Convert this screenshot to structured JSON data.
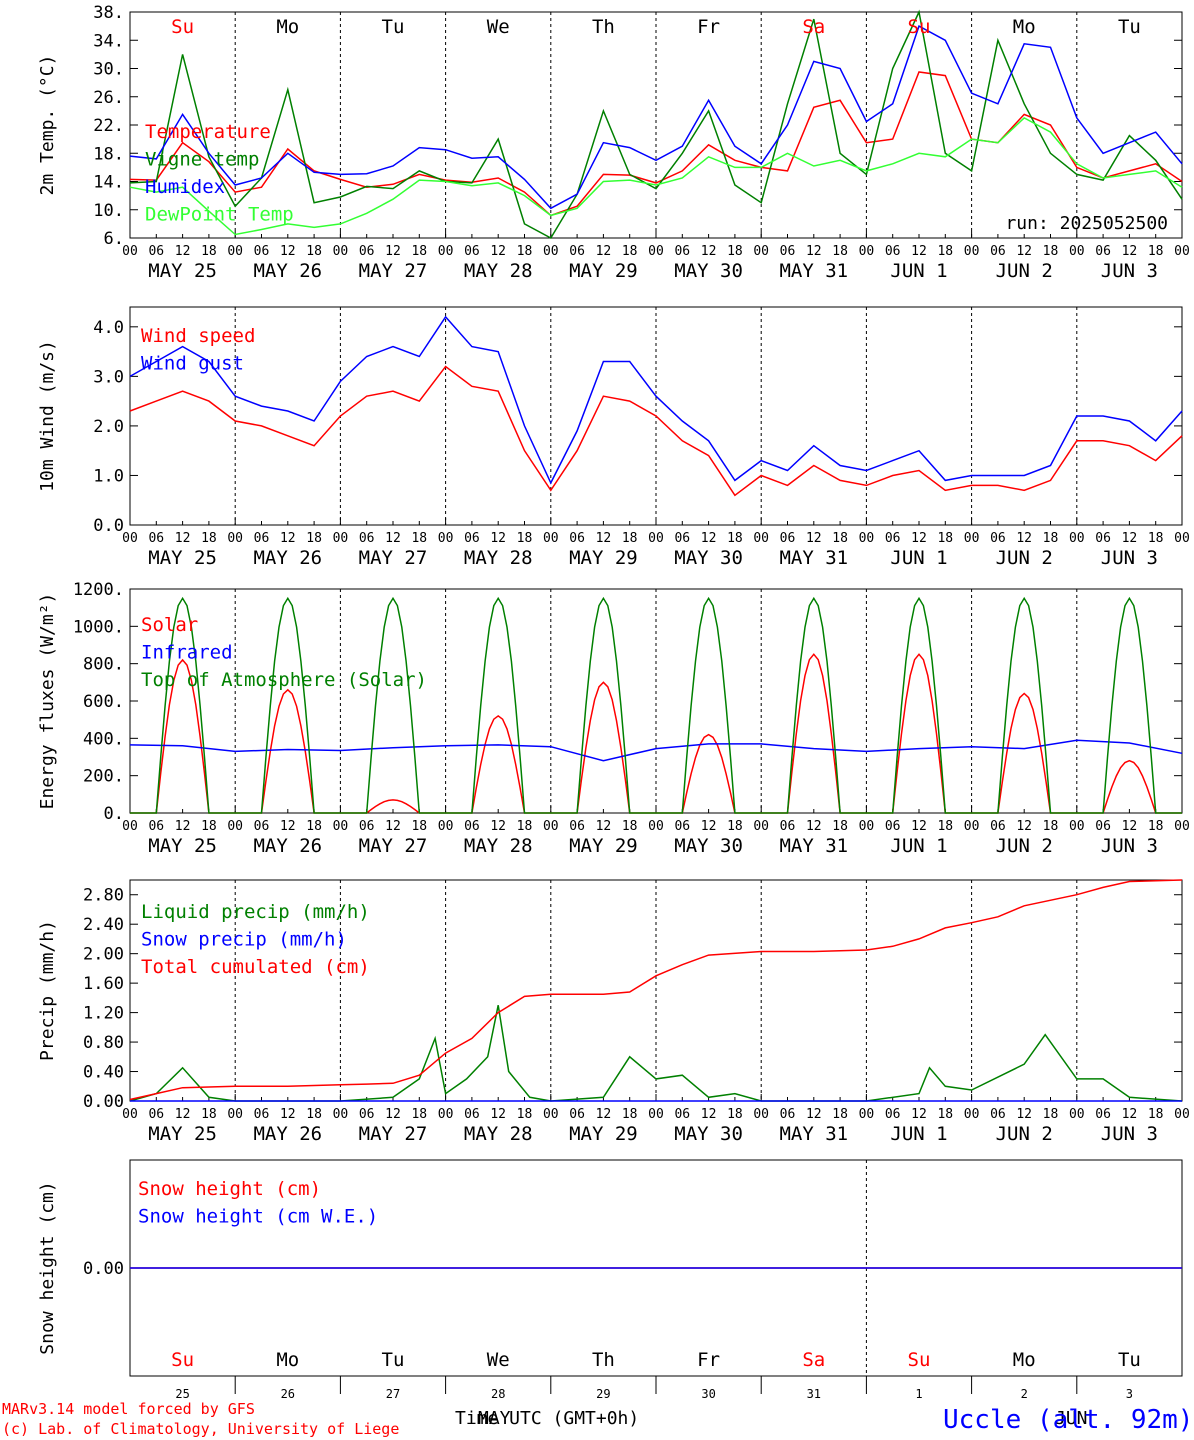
{
  "colors": {
    "red": "#ff0000",
    "green": "#008000",
    "blue": "#0000ff",
    "lightgreen": "#33ff33",
    "black": "#000000"
  },
  "days": {
    "weekday": [
      "Su",
      "Mo",
      "Tu",
      "We",
      "Th",
      "Fr",
      "Sa",
      "Su",
      "Mo",
      "Tu"
    ],
    "weekday_red": [
      true,
      false,
      false,
      false,
      false,
      false,
      true,
      true,
      false,
      false
    ],
    "date_labels": [
      "MAY 25",
      "MAY 26",
      "MAY 27",
      "MAY 28",
      "MAY 29",
      "MAY 30",
      "MAY 31",
      "JUN  1",
      "JUN  2",
      "JUN  3"
    ],
    "day_numbers": [
      "25",
      "26",
      "27",
      "28",
      "29",
      "30",
      "31",
      "1",
      "2",
      "3"
    ],
    "hour_ticks": [
      "00",
      "06",
      "12",
      "18"
    ],
    "end_tick": "00"
  },
  "footer": {
    "model": "MARv3.14 model forced by GFS",
    "lab": "(c) Lab. of Climatology, University of Liege",
    "time_label": "Time UTC (GMT+0h)",
    "month_may": "MAY",
    "month_jun": "JUN",
    "station": "Uccle (alt. 92m)"
  },
  "chart_data": [
    {
      "type": "line",
      "ylabel": "2m Temp. (°C)",
      "ylim": [
        6,
        38
      ],
      "yticks": [
        "38.",
        "34.",
        "30.",
        "26.",
        "22.",
        "18.",
        "14.",
        "10.",
        "6."
      ],
      "run_label": "run: 2025052500",
      "series": [
        {
          "name": "Temperature",
          "color": "red",
          "x": [
            0,
            0.25,
            0.5,
            0.75,
            1,
            1.25,
            1.5,
            1.75,
            2,
            2.25,
            2.5,
            2.75,
            3,
            3.25,
            3.5,
            3.75,
            4,
            4.25,
            4.5,
            4.75,
            5,
            5.25,
            5.5,
            5.75,
            6,
            6.25,
            6.5,
            6.75,
            7,
            7.25,
            7.5,
            7.75,
            8,
            8.25,
            8.5,
            8.75,
            9,
            9.25,
            9.5,
            9.75,
            10
          ],
          "y": [
            14.3,
            14.2,
            19.5,
            16.8,
            12.5,
            13.2,
            18.6,
            15.5,
            14.3,
            13.2,
            13.6,
            15,
            14.2,
            13.9,
            14.5,
            12.5,
            9.2,
            10.5,
            15,
            14.9,
            13.8,
            15.5,
            19.2,
            17,
            16,
            15.5,
            24.5,
            25.5,
            19.5,
            20,
            29.5,
            29,
            20,
            19.5,
            23.5,
            22,
            16,
            14.5,
            15.5,
            16.5,
            14
          ]
        },
        {
          "name": "Vigne temp",
          "color": "green",
          "x": [
            0,
            0.25,
            0.5,
            0.75,
            1,
            1.25,
            1.5,
            1.75,
            2,
            2.25,
            2.5,
            2.75,
            3,
            3.25,
            3.5,
            3.75,
            4,
            4.25,
            4.5,
            4.75,
            5,
            5.25,
            5.5,
            5.75,
            6,
            6.25,
            6.5,
            6.75,
            7,
            7.25,
            7.5,
            7.75,
            8,
            8.25,
            8.5,
            8.75,
            9,
            9.25,
            9.5,
            9.75,
            10
          ],
          "y": [
            13.8,
            14,
            32,
            17.5,
            10.5,
            14.5,
            27,
            11,
            11.8,
            13.3,
            13,
            15.5,
            14,
            13.8,
            20,
            8,
            5.5,
            12.2,
            24,
            15,
            13,
            18,
            24,
            13.5,
            11,
            25,
            37,
            18,
            15,
            30,
            38,
            18,
            15.5,
            34,
            25,
            18,
            15,
            14.2,
            20.5,
            17,
            11.5
          ]
        },
        {
          "name": "Humidex",
          "color": "blue",
          "x": [
            0,
            0.25,
            0.5,
            0.75,
            1,
            1.25,
            1.5,
            1.75,
            2,
            2.25,
            2.5,
            2.75,
            3,
            3.25,
            3.5,
            3.75,
            4,
            4.25,
            4.5,
            4.75,
            5,
            5.25,
            5.5,
            5.75,
            6,
            6.25,
            6.5,
            6.75,
            7,
            7.25,
            7.5,
            7.75,
            8,
            8.25,
            8.5,
            8.75,
            9,
            9.25,
            9.5,
            9.75,
            10
          ],
          "y": [
            17.6,
            17.2,
            23.5,
            18,
            13.5,
            14.5,
            18,
            15.3,
            15,
            15.1,
            16.2,
            18.8,
            18.5,
            17.3,
            17.5,
            14.3,
            10.2,
            12.2,
            19.5,
            18.8,
            17,
            19,
            25.5,
            19,
            16.5,
            22,
            31,
            30,
            22.5,
            25,
            36,
            34,
            26.5,
            25,
            33.5,
            33,
            23,
            18,
            19.5,
            21,
            16.5
          ]
        },
        {
          "name": "DewPoint Temp",
          "color": "lightgreen",
          "x": [
            0,
            0.25,
            0.5,
            0.75,
            1,
            1.25,
            1.5,
            1.75,
            2,
            2.25,
            2.5,
            2.75,
            3,
            3.25,
            3.5,
            3.75,
            4,
            4.25,
            4.5,
            4.75,
            5,
            5.25,
            5.5,
            5.75,
            6,
            6.25,
            6.5,
            6.75,
            7,
            7.25,
            7.5,
            7.75,
            8,
            8.25,
            8.5,
            8.75,
            9,
            9.25,
            9.5,
            9.75,
            10
          ],
          "y": [
            13.2,
            12.5,
            13.2,
            9.8,
            6.5,
            7.2,
            8,
            7.5,
            8,
            9.5,
            11.5,
            14.2,
            14,
            13.4,
            13.8,
            12,
            9.2,
            10.2,
            14,
            14.2,
            13.5,
            14.5,
            17.5,
            16,
            16,
            18,
            16.2,
            17,
            15.5,
            16.5,
            18,
            17.5,
            20,
            19.5,
            23,
            21,
            16.5,
            14.5,
            15,
            15.5,
            13.2
          ]
        }
      ]
    },
    {
      "type": "line",
      "ylabel": "10m Wind (m/s)",
      "ylim": [
        0,
        4.4
      ],
      "yticks": [
        "4.0",
        "3.0",
        "2.0",
        "1.0",
        "0.0"
      ],
      "series": [
        {
          "name": "Wind speed",
          "color": "red",
          "x": [
            0,
            0.25,
            0.5,
            0.75,
            1,
            1.25,
            1.5,
            1.75,
            2,
            2.25,
            2.5,
            2.75,
            3,
            3.25,
            3.5,
            3.75,
            4,
            4.25,
            4.5,
            4.75,
            5,
            5.25,
            5.5,
            5.75,
            6,
            6.25,
            6.5,
            6.75,
            7,
            7.25,
            7.5,
            7.75,
            8,
            8.25,
            8.5,
            8.75,
            9,
            9.25,
            9.5,
            9.75,
            10
          ],
          "y": [
            2.3,
            2.5,
            2.7,
            2.5,
            2.1,
            2,
            1.8,
            1.6,
            2.2,
            2.6,
            2.7,
            2.5,
            3.2,
            2.8,
            2.7,
            1.5,
            0.7,
            1.5,
            2.6,
            2.5,
            2.2,
            1.7,
            1.4,
            0.6,
            1,
            0.8,
            1.2,
            0.9,
            0.8,
            1,
            1.1,
            0.7,
            0.8,
            0.8,
            0.7,
            0.9,
            1.7,
            1.7,
            1.6,
            1.3,
            1.8
          ]
        },
        {
          "name": "Wind gust",
          "color": "blue",
          "x": [
            0,
            0.25,
            0.5,
            0.75,
            1,
            1.25,
            1.5,
            1.75,
            2,
            2.25,
            2.5,
            2.75,
            3,
            3.25,
            3.5,
            3.75,
            4,
            4.25,
            4.5,
            4.75,
            5,
            5.25,
            5.5,
            5.75,
            6,
            6.25,
            6.5,
            6.75,
            7,
            7.25,
            7.5,
            7.75,
            8,
            8.25,
            8.5,
            8.75,
            9,
            9.25,
            9.5,
            9.75,
            10
          ],
          "y": [
            3,
            3.3,
            3.6,
            3.3,
            2.6,
            2.4,
            2.3,
            2.1,
            2.9,
            3.4,
            3.6,
            3.4,
            4.2,
            3.6,
            3.5,
            2,
            0.85,
            1.9,
            3.3,
            3.3,
            2.6,
            2.1,
            1.7,
            0.9,
            1.3,
            1.1,
            1.6,
            1.2,
            1.1,
            1.3,
            1.5,
            0.9,
            1,
            1,
            1,
            1.2,
            2.2,
            2.2,
            2.1,
            1.7,
            2.3
          ]
        }
      ]
    },
    {
      "type": "line",
      "ylabel": "Energy fluxes (W/m²)",
      "ylim": [
        0,
        1200
      ],
      "yticks": [
        "1200.",
        "1000.",
        "800.",
        "600.",
        "400.",
        "200.",
        "0."
      ],
      "series": [
        {
          "name": "Solar",
          "color": "red",
          "daily_peak": [
            820,
            660,
            70,
            520,
            700,
            420,
            850,
            850,
            640,
            280
          ]
        },
        {
          "name": "Infrared",
          "color": "blue",
          "x": [
            0,
            0.5,
            1,
            1.5,
            2,
            2.5,
            3,
            3.5,
            4,
            4.5,
            5,
            5.5,
            6,
            6.5,
            7,
            7.5,
            8,
            8.5,
            9,
            9.5,
            10
          ],
          "y": [
            365,
            360,
            330,
            340,
            335,
            350,
            360,
            365,
            355,
            280,
            345,
            370,
            370,
            345,
            330,
            345,
            355,
            345,
            390,
            375,
            320
          ]
        },
        {
          "name": "Top of Atmosphere (Solar)",
          "color": "green",
          "daily_peak": [
            1150,
            1150,
            1150,
            1150,
            1150,
            1150,
            1150,
            1150,
            1150,
            1150
          ]
        }
      ]
    },
    {
      "type": "line",
      "ylabel": "Precip (mm/h)",
      "ylim": [
        0,
        3.0
      ],
      "yticks": [
        "2.80",
        "2.40",
        "2.00",
        "1.60",
        "1.20",
        "0.80",
        "0.40",
        "0.00"
      ],
      "series": [
        {
          "name": "Liquid precip (mm/h)",
          "color": "green",
          "x": [
            0,
            0.25,
            0.5,
            0.75,
            1,
            1.5,
            2,
            2.5,
            2.75,
            2.9,
            3,
            3.2,
            3.4,
            3.5,
            3.6,
            3.8,
            4,
            4.5,
            4.75,
            5,
            5.25,
            5.5,
            5.75,
            6,
            6.5,
            7,
            7.5,
            7.6,
            7.75,
            8,
            8.5,
            8.7,
            9,
            9.25,
            9.5,
            10
          ],
          "y": [
            0,
            0.1,
            0.45,
            0.05,
            0,
            0,
            0,
            0.05,
            0.3,
            0.85,
            0.1,
            0.3,
            0.6,
            1.3,
            0.4,
            0.05,
            0,
            0.05,
            0.6,
            0.3,
            0.35,
            0.05,
            0.1,
            0,
            0,
            0,
            0.1,
            0.45,
            0.2,
            0.15,
            0.5,
            0.9,
            0.3,
            0.3,
            0.05,
            0
          ]
        },
        {
          "name": "Snow precip (mm/h)",
          "color": "blue",
          "x": [
            0,
            10
          ],
          "y": [
            0,
            0
          ]
        },
        {
          "name": "Total cumulated (cm)",
          "color": "red",
          "x": [
            0,
            0.25,
            0.5,
            1,
            1.5,
            2,
            2.25,
            2.5,
            2.75,
            3,
            3.25,
            3.5,
            3.75,
            4,
            4.5,
            4.75,
            5,
            5.25,
            5.5,
            6,
            6.5,
            7,
            7.25,
            7.5,
            7.75,
            8,
            8.25,
            8.5,
            9,
            9.25,
            9.5,
            10
          ],
          "y": [
            0.02,
            0.1,
            0.18,
            0.2,
            0.2,
            0.22,
            0.23,
            0.24,
            0.35,
            0.65,
            0.85,
            1.2,
            1.42,
            1.45,
            1.45,
            1.48,
            1.7,
            1.85,
            1.98,
            2.03,
            2.03,
            2.05,
            2.1,
            2.2,
            2.35,
            2.42,
            2.5,
            2.65,
            2.8,
            2.9,
            2.98,
            3.0
          ]
        }
      ]
    },
    {
      "type": "line",
      "ylabel": "Snow height (cm)",
      "yticks": [
        "0.00"
      ],
      "series": [
        {
          "name": "Snow height (cm)",
          "color": "red",
          "x": [
            0,
            10
          ],
          "y": [
            0,
            0
          ]
        },
        {
          "name": "Snow height (cm W.E.)",
          "color": "blue",
          "x": [
            0,
            10
          ],
          "y": [
            0,
            0
          ]
        }
      ]
    }
  ]
}
